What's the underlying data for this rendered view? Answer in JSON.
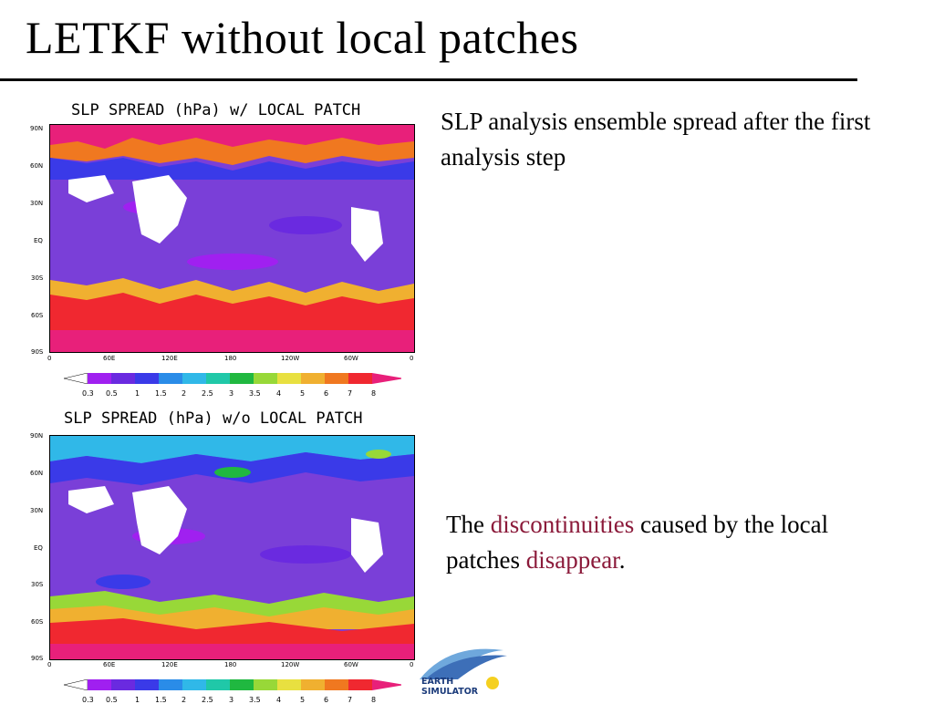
{
  "slide": {
    "title": "LETKF without local patches",
    "caption_top": "SLP analysis ensemble spread after the first analysis step",
    "caption_bottom": {
      "part1": "The ",
      "part2": "discontinuities",
      "part3": " caused by the local patches ",
      "part4": "disappear",
      "part5": "."
    },
    "highlight_color": "#8b1a3a"
  },
  "panels": [
    {
      "title": "SLP SPREAD (hPa) w/ LOCAL PATCH",
      "lat_labels": [
        "90N",
        "60N",
        "30N",
        "EQ",
        "30S",
        "60S",
        "90S"
      ],
      "lon_labels": [
        "0",
        "60E",
        "120E",
        "180",
        "120W",
        "60W",
        "0"
      ],
      "colorbar_labels": [
        "0.3",
        "0.5",
        "1",
        "1.5",
        "2",
        "2.5",
        "3",
        "3.5",
        "4",
        "5",
        "6",
        "7",
        "8"
      ]
    },
    {
      "title": "SLP SPREAD (hPa) w/o LOCAL PATCH",
      "lat_labels": [
        "90N",
        "60N",
        "30N",
        "EQ",
        "30S",
        "60S",
        "90S"
      ],
      "lon_labels": [
        "0",
        "60E",
        "120E",
        "180",
        "120W",
        "60W",
        "0"
      ],
      "colorbar_labels": [
        "0.3",
        "0.5",
        "1",
        "1.5",
        "2",
        "2.5",
        "3",
        "3.5",
        "4",
        "5",
        "6",
        "7",
        "8"
      ]
    }
  ],
  "colorbar_colors": [
    "#a020f0",
    "#6a2ae0",
    "#3a3ae8",
    "#2a8ce8",
    "#30b8e8",
    "#20c8a8",
    "#20b840",
    "#98d838",
    "#e8e040",
    "#f0b030",
    "#f07820",
    "#f02830",
    "#e8207a"
  ],
  "logo": {
    "line1": "EARTH",
    "line2": "SIMULATOR"
  }
}
